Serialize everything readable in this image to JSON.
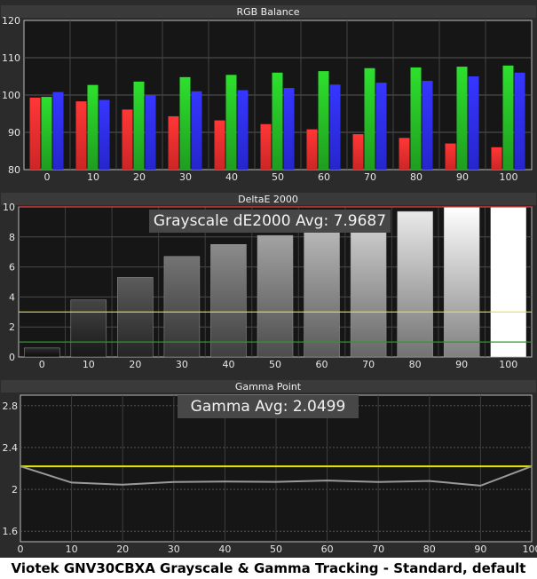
{
  "caption": "Viotek GNV30CBXA Grayscale & Gamma Tracking - Standard, default",
  "chart_data": [
    {
      "type": "bar",
      "title": "RGB Balance",
      "categories": [
        "0",
        "10",
        "20",
        "30",
        "40",
        "50",
        "60",
        "70",
        "80",
        "90",
        "100"
      ],
      "ylim": [
        80,
        120
      ],
      "yticks": [
        80,
        90,
        100,
        110,
        120
      ],
      "grid": true,
      "series": [
        {
          "color": "#ff3030",
          "values": [
            99.3,
            98.3,
            96.1,
            94.3,
            93.2,
            92.2,
            90.8,
            89.5,
            88.5,
            87.0,
            86.0
          ]
        },
        {
          "color": "#27c427",
          "values": [
            99.5,
            102.7,
            103.6,
            104.8,
            105.4,
            106.0,
            106.4,
            107.2,
            107.4,
            107.6,
            107.9
          ]
        },
        {
          "color": "#2f2fff",
          "values": [
            100.8,
            98.7,
            100.0,
            101.0,
            101.3,
            101.9,
            102.8,
            103.3,
            103.8,
            105.0,
            106.0
          ]
        }
      ]
    },
    {
      "type": "bar",
      "title": "DeltaE 2000",
      "categories": [
        "0",
        "10",
        "20",
        "30",
        "40",
        "50",
        "60",
        "70",
        "80",
        "90",
        "100"
      ],
      "ylim": [
        0,
        10
      ],
      "yticks": [
        0,
        2,
        4,
        6,
        8,
        10
      ],
      "grid": true,
      "values": [
        0.6,
        3.8,
        5.3,
        6.7,
        7.5,
        8.1,
        8.6,
        9.1,
        9.7,
        10.0,
        10.0
      ],
      "reference_lines": [
        {
          "value": 10,
          "color": "#e83a3a"
        },
        {
          "value": 3,
          "color": "#e6e62a"
        },
        {
          "value": 1,
          "color": "#2a9a2a"
        }
      ],
      "annotation": "Grayscale dE2000 Avg: 7.9687"
    },
    {
      "type": "line",
      "title": "Gamma Point",
      "x": [
        0,
        10,
        20,
        30,
        40,
        50,
        60,
        70,
        80,
        90,
        100
      ],
      "y": [
        2.22,
        2.065,
        2.045,
        2.07,
        2.075,
        2.072,
        2.085,
        2.07,
        2.08,
        2.035,
        2.22
      ],
      "xlim": [
        0,
        100
      ],
      "xticks": [
        0,
        10,
        20,
        30,
        40,
        50,
        60,
        70,
        80,
        90,
        100
      ],
      "ylim": [
        1.5,
        2.9
      ],
      "yticks": [
        1.6,
        2,
        2.4,
        2.8
      ],
      "ytick_labels": [
        "1.6",
        "2",
        "2.4",
        "2.8"
      ],
      "grid": true,
      "target_line": {
        "value": 2.22,
        "color": "#e6e600"
      },
      "annotation": "Gamma Avg: 2.0499"
    }
  ]
}
